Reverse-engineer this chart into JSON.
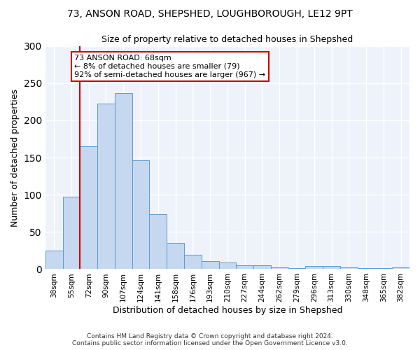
{
  "title1": "73, ANSON ROAD, SHEPSHED, LOUGHBOROUGH, LE12 9PT",
  "title2": "Size of property relative to detached houses in Shepshed",
  "xlabel": "Distribution of detached houses by size in Shepshed",
  "ylabel": "Number of detached properties",
  "categories": [
    "38sqm",
    "55sqm",
    "72sqm",
    "90sqm",
    "107sqm",
    "124sqm",
    "141sqm",
    "158sqm",
    "176sqm",
    "193sqm",
    "210sqm",
    "227sqm",
    "244sqm",
    "262sqm",
    "279sqm",
    "296sqm",
    "313sqm",
    "330sqm",
    "348sqm",
    "365sqm",
    "382sqm"
  ],
  "values": [
    25,
    97,
    165,
    222,
    237,
    146,
    74,
    35,
    19,
    11,
    9,
    5,
    5,
    2,
    1,
    4,
    4,
    2,
    1,
    1,
    2
  ],
  "bar_color": "#c5d8ef",
  "bar_edge_color": "#5b9bd5",
  "vline_color": "#cc0000",
  "vline_x": 1.5,
  "ylim": [
    0,
    300
  ],
  "yticks": [
    0,
    50,
    100,
    150,
    200,
    250,
    300
  ],
  "annotation_title": "73 ANSON ROAD: 68sqm",
  "annotation_line1": "← 8% of detached houses are smaller (79)",
  "annotation_line2": "92% of semi-detached houses are larger (967) →",
  "annotation_box_color": "#ffffff",
  "annotation_box_edge": "#cc0000",
  "footer1": "Contains HM Land Registry data © Crown copyright and database right 2024.",
  "footer2": "Contains public sector information licensed under the Open Government Licence v3.0.",
  "bg_color": "#eef2fa",
  "grid_color": "#ffffff",
  "title1_fontsize": 10,
  "title2_fontsize": 9
}
